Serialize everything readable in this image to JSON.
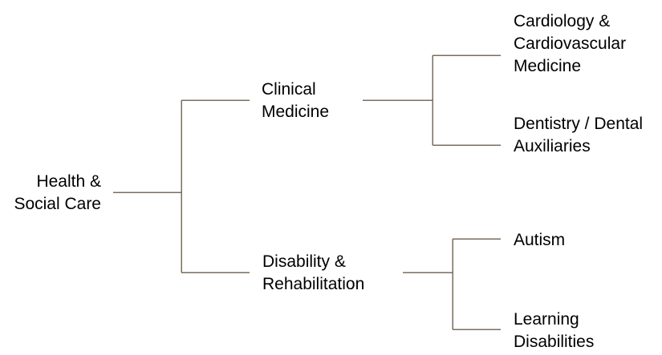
{
  "tree": {
    "root": {
      "line1": "Health &",
      "line2": "Social Care"
    },
    "branches": [
      {
        "line1": "Clinical",
        "line2": "Medicine",
        "children": [
          {
            "line1": "Cardiology &",
            "line2": "Cardiovascular",
            "line3": "Medicine"
          },
          {
            "line1": "Dentistry / Dental",
            "line2": "Auxiliaries"
          }
        ]
      },
      {
        "line1": "Disability &",
        "line2": "Rehabilitation",
        "children": [
          {
            "line1": "Autism"
          },
          {
            "line1": "Learning",
            "line2": "Disabilities"
          }
        ]
      }
    ]
  },
  "colors": {
    "connector": "#7a6d5c",
    "text": "#000000",
    "background": "#ffffff"
  }
}
